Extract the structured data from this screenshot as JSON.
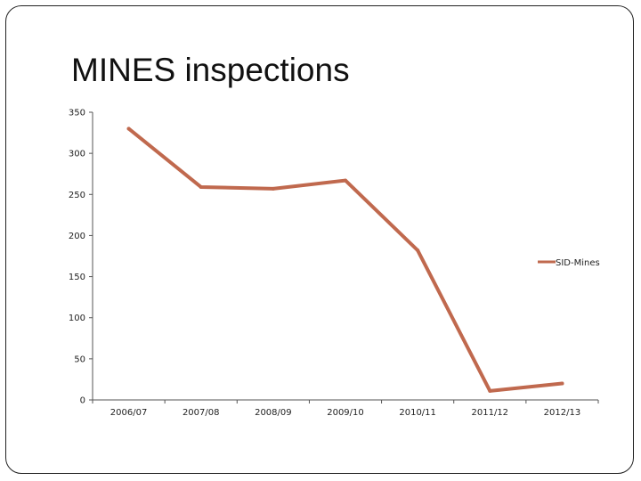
{
  "slide": {
    "title": "MINES inspections"
  },
  "chart_data": {
    "type": "line",
    "title": "",
    "xlabel": "",
    "ylabel": "",
    "categories": [
      "2006/07",
      "2007/08",
      "2008/09",
      "2009/10",
      "2010/11",
      "2011/12",
      "2012/13"
    ],
    "series": [
      {
        "name": "SID-Mines",
        "values": [
          330,
          259,
          257,
          267,
          182,
          11,
          20
        ],
        "color": "#C0694E"
      }
    ],
    "ylim": [
      0,
      350
    ],
    "yticks": [
      0,
      50,
      100,
      150,
      200,
      250,
      300,
      350
    ],
    "grid": false,
    "legend": "right"
  }
}
